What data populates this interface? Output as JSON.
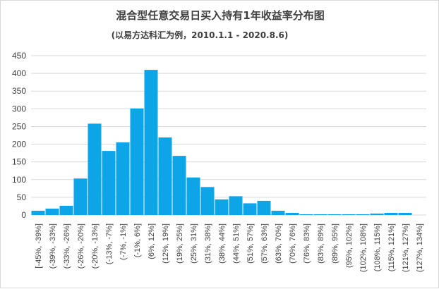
{
  "chart_data": {
    "type": "bar",
    "title": "混合型任意交易日买入持有1年收益率分布图",
    "subtitle": "(以易方达科汇为例，2010.1.1 - 2020.8.6)",
    "xlabel": "",
    "ylabel": "",
    "ylim": [
      0,
      450
    ],
    "yticks": [
      "0",
      "50",
      "100",
      "150",
      "200",
      "250",
      "300",
      "350",
      "400",
      "450"
    ],
    "grid": true,
    "legend": "none",
    "bar_color": "#0ea5e8",
    "categories": [
      "[-45%, -39%]",
      "(-39%, -33%]",
      "(-33%, -26%]",
      "(-26%, -20%]",
      "(-20%, -13%]",
      "(-13%, -7%]",
      "(-7%, -1%]",
      "(-1%, 6%]",
      "(6%, 12%]",
      "(12%, 19%]",
      "(19%, 25%]",
      "(25%, 31%]",
      "(31%, 38%]",
      "(38%, 44%]",
      "(44%, 51%]",
      "(51%, 57%]",
      "(57%, 63%]",
      "(63%, 70%]",
      "(70%, 76%]",
      "(76%, 83%]",
      "(83%, 89%]",
      "(89%, 95%]",
      "(95%, 102%]",
      "(102%, 108%]",
      "(108%, 115%]",
      "(115%, 121%]",
      "(121%, 127%]",
      "(127%, 134%]"
    ],
    "values": [
      12,
      18,
      26,
      103,
      258,
      181,
      205,
      301,
      410,
      219,
      167,
      106,
      79,
      44,
      53,
      33,
      40,
      12,
      6,
      2,
      2,
      2,
      2,
      2,
      4,
      6,
      6,
      0
    ]
  }
}
